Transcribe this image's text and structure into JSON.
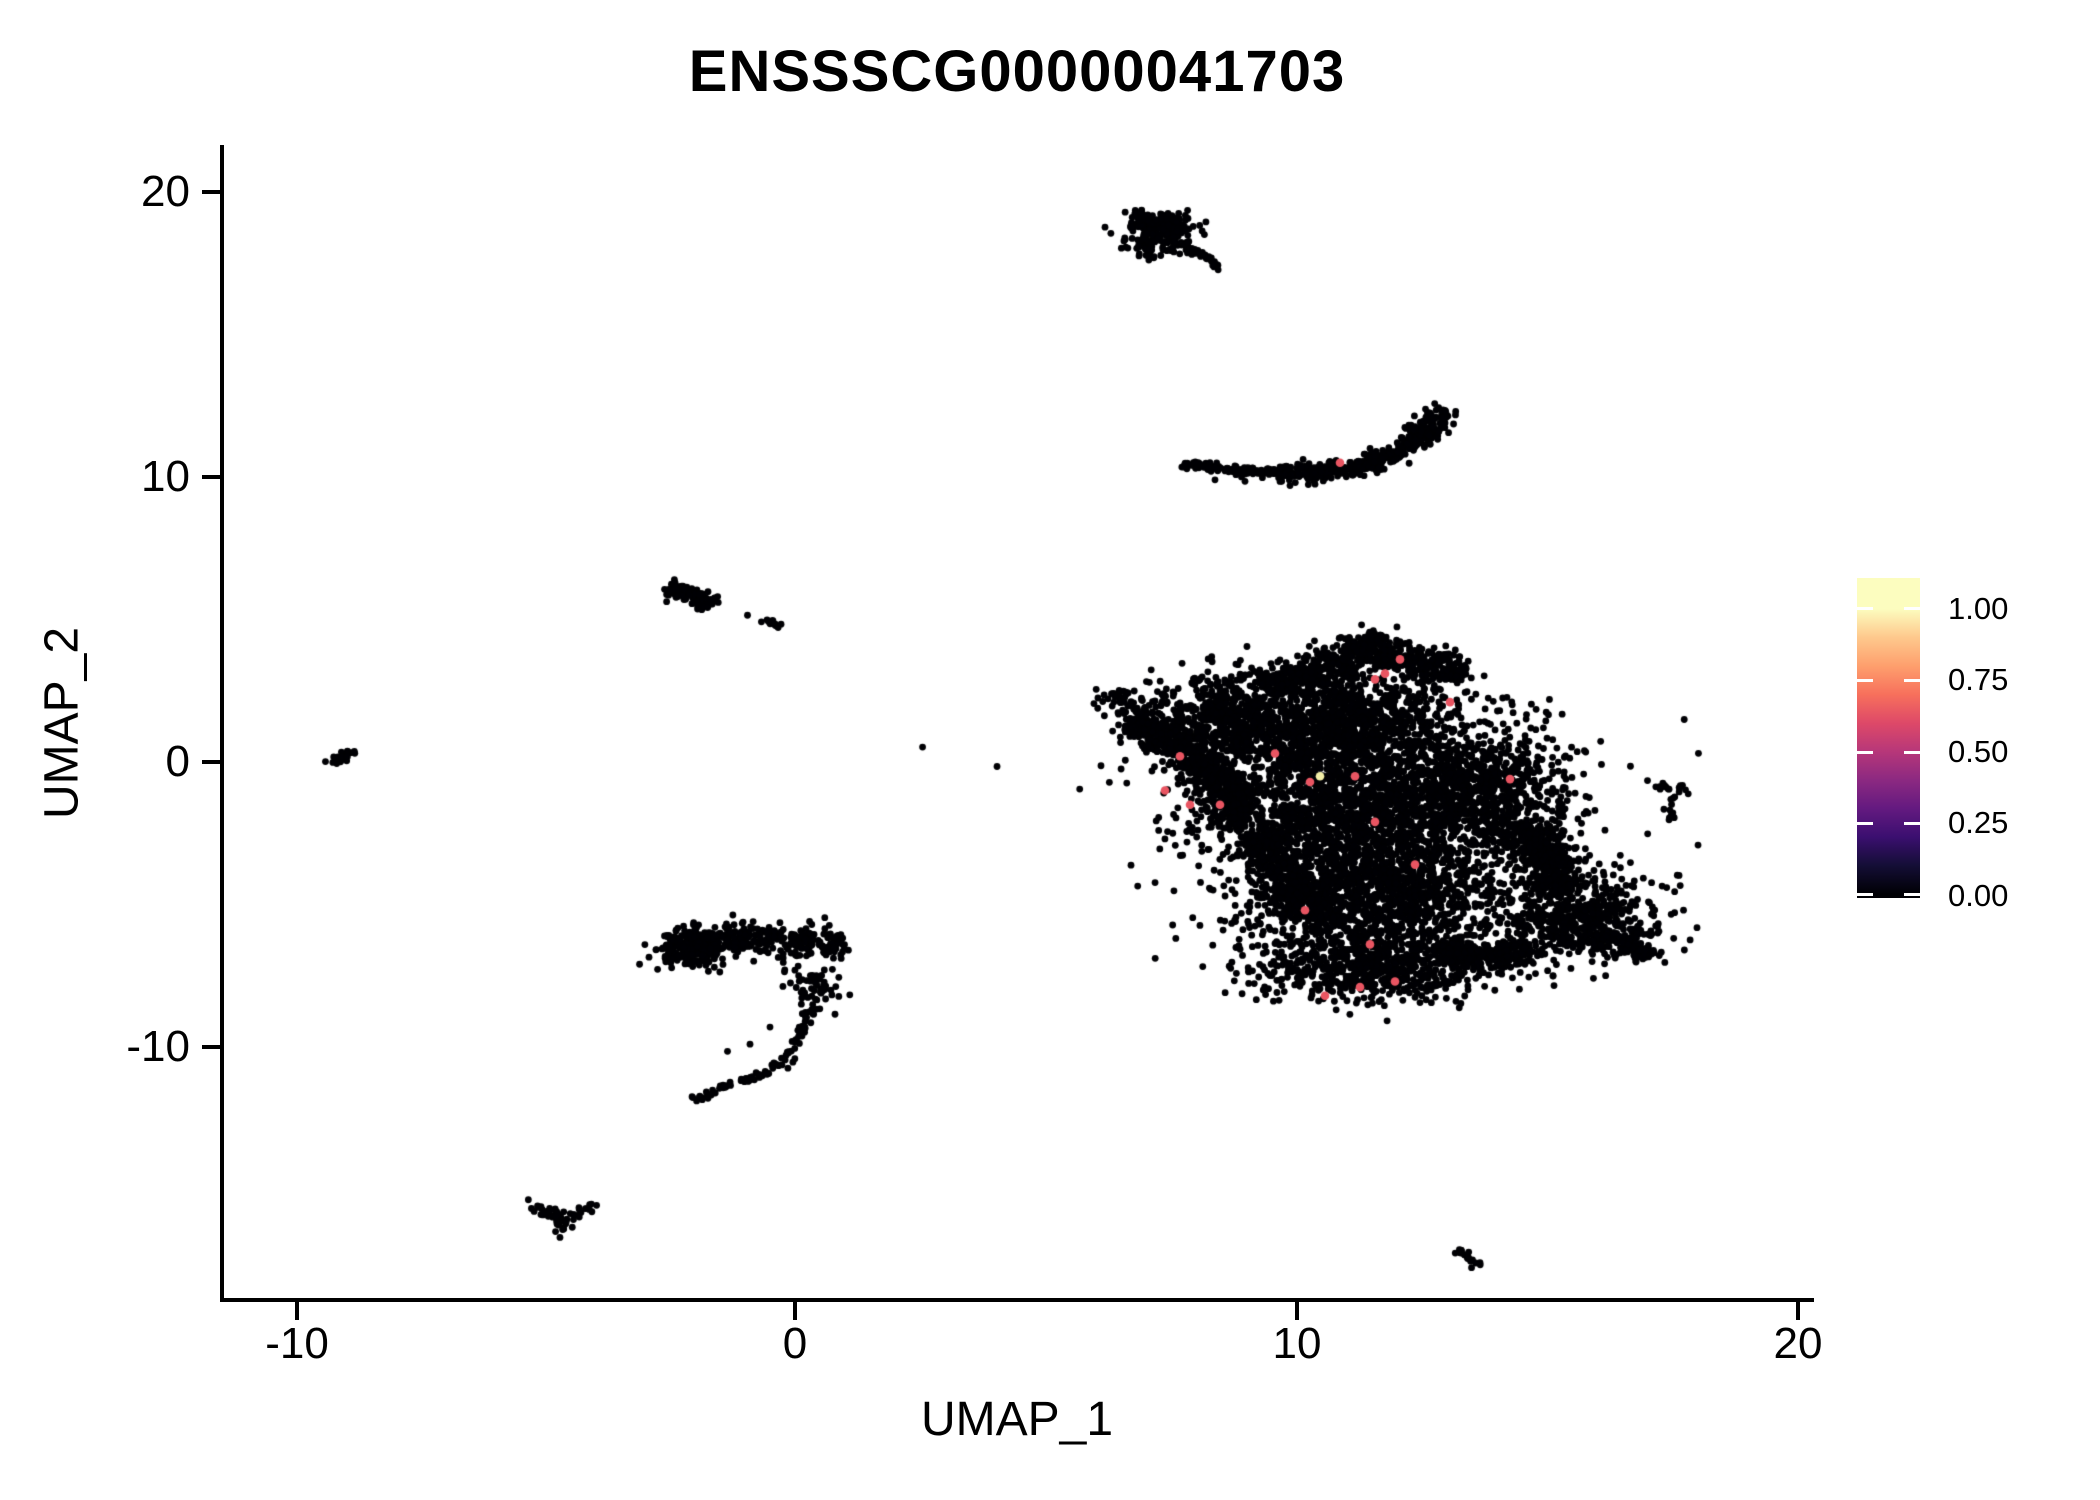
{
  "title": "ENSSSCG00000041703",
  "axes": {
    "x": {
      "label": "UMAP_1",
      "tick_labels": [
        "-10",
        "0",
        "10",
        "20"
      ],
      "tick_values": [
        -10,
        0,
        10,
        20
      ],
      "range": [
        -11.5,
        20.3
      ]
    },
    "y": {
      "label": "UMAP_2",
      "tick_labels": [
        "20",
        "10",
        "0",
        "-10"
      ],
      "tick_values": [
        20,
        10,
        0,
        -10
      ],
      "range": [
        -18.9,
        21.6
      ]
    }
  },
  "legend": {
    "labels": [
      "1.00",
      "0.75",
      "0.50",
      "0.25",
      "0.00"
    ],
    "colormap": "magma",
    "stops": [
      {
        "v": 1.0,
        "c": "#FCFDBF"
      },
      {
        "v": 0.9,
        "c": "#FEC98D"
      },
      {
        "v": 0.8,
        "c": "#FE9F6D"
      },
      {
        "v": 0.7,
        "c": "#F7705C"
      },
      {
        "v": 0.6,
        "c": "#DE4968"
      },
      {
        "v": 0.5,
        "c": "#B73779"
      },
      {
        "v": 0.4,
        "c": "#8C2981"
      },
      {
        "v": 0.3,
        "c": "#641A80"
      },
      {
        "v": 0.2,
        "c": "#3B0F70"
      },
      {
        "v": 0.1,
        "c": "#140E36"
      },
      {
        "v": 0.0,
        "c": "#000004"
      }
    ]
  },
  "chart_data": {
    "type": "scatter",
    "title": "ENSSSCG00000041703",
    "xlabel": "UMAP_1",
    "ylabel": "UMAP_2",
    "xlim": [
      -11.5,
      20.3
    ],
    "ylim": [
      -18.9,
      21.6
    ],
    "grid": false,
    "legend_position": "right",
    "point_color_zero": "#000004",
    "highlight_color": "#E95562",
    "highlight_max_color": "#F2EDA7",
    "description": "UMAP embedding of ~10000 cells colored by expression of ENSSSCG00000041703; nearly all cells are 0 (black), a few scattered cells in the large right-hand cluster and one in the upper crescent show expression ~0.6-1.0",
    "clusters": [
      {
        "name": "main-nose",
        "shape": "gauss",
        "c": [
          6.55,
          2.2
        ],
        "s": [
          0.3,
          0.35
        ],
        "n": 50
      },
      {
        "name": "main-left-arm",
        "shape": "band",
        "path": [
          [
            6.7,
            1.5
          ],
          [
            7.5,
            0.8
          ],
          [
            8.3,
            -0.3
          ],
          [
            8.9,
            -1.4
          ],
          [
            8.6,
            -2.3
          ]
        ],
        "w": 0.55,
        "n": 620
      },
      {
        "name": "main-upper-left-lobe",
        "shape": "gauss",
        "c": [
          8.6,
          1.5
        ],
        "s": [
          0.75,
          0.8
        ],
        "n": 520
      },
      {
        "name": "main-top-ridge",
        "shape": "band",
        "path": [
          [
            9.4,
            2.5
          ],
          [
            10.4,
            3.2
          ],
          [
            11.4,
            4.0
          ],
          [
            12.4,
            3.5
          ],
          [
            13.3,
            3.0
          ]
        ],
        "w": 0.55,
        "n": 620
      },
      {
        "name": "main-top-peak",
        "shape": "gauss",
        "c": [
          11.5,
          4.1
        ],
        "s": [
          0.28,
          0.3
        ],
        "n": 60
      },
      {
        "name": "main-central-upper",
        "shape": "gauss",
        "c": [
          10.9,
          1.2
        ],
        "s": [
          1.3,
          1.0
        ],
        "n": 1250
      },
      {
        "name": "main-central",
        "shape": "gauss",
        "c": [
          11.3,
          -1.5
        ],
        "s": [
          1.5,
          1.2
        ],
        "n": 1550
      },
      {
        "name": "main-central-lower",
        "shape": "gauss",
        "c": [
          11.6,
          -4.5
        ],
        "s": [
          1.4,
          1.2
        ],
        "n": 1550
      },
      {
        "name": "main-right-mid",
        "shape": "gauss",
        "c": [
          13.9,
          -0.9
        ],
        "s": [
          0.8,
          1.0
        ],
        "n": 570
      },
      {
        "name": "main-right-band",
        "shape": "band",
        "path": [
          [
            14.5,
            -2.2
          ],
          [
            15.1,
            -3.4
          ],
          [
            15.1,
            -4.6
          ]
        ],
        "w": 0.6,
        "n": 360
      },
      {
        "name": "main-right-lobe",
        "shape": "gauss",
        "c": [
          15.7,
          -5.5
        ],
        "s": [
          0.8,
          0.75
        ],
        "n": 570
      },
      {
        "name": "main-right-tip",
        "shape": "band",
        "path": [
          [
            16.1,
            -6.0
          ],
          [
            16.7,
            -6.5
          ],
          [
            17.1,
            -6.9
          ]
        ],
        "w": 0.3,
        "n": 110
      },
      {
        "name": "main-bottom",
        "shape": "gauss",
        "c": [
          11.6,
          -7.2
        ],
        "s": [
          1.3,
          0.6
        ],
        "n": 620
      },
      {
        "name": "main-bottom-bridge",
        "shape": "band",
        "path": [
          [
            12.8,
            -6.6
          ],
          [
            13.8,
            -6.8
          ],
          [
            14.7,
            -6.6
          ]
        ],
        "w": 0.5,
        "n": 260
      },
      {
        "name": "main-lower-left-edge",
        "shape": "band",
        "path": [
          [
            9.3,
            -2.5
          ],
          [
            9.8,
            -4.0
          ],
          [
            10.2,
            -5.5
          ]
        ],
        "w": 0.5,
        "n": 320
      },
      {
        "name": "main-outliers",
        "shape": "gauss",
        "c": [
          11.2,
          -1.8
        ],
        "s": [
          3.1,
          2.5
        ],
        "n": 120
      },
      {
        "name": "comet-blob",
        "shape": "gauss",
        "c": [
          7.3,
          18.8
        ],
        "s": [
          0.33,
          0.28
        ],
        "n": 150
      },
      {
        "name": "comet-lower",
        "shape": "gauss",
        "c": [
          7.1,
          18.1
        ],
        "s": [
          0.28,
          0.25
        ],
        "n": 70
      },
      {
        "name": "comet-tail",
        "shape": "band",
        "path": [
          [
            7.6,
            18.4
          ],
          [
            8.1,
            17.8
          ],
          [
            8.55,
            17.3
          ]
        ],
        "w": 0.1,
        "n": 45
      },
      {
        "name": "comet-tip",
        "shape": "band",
        "path": [
          [
            6.8,
            19.3
          ],
          [
            7.3,
            18.9
          ]
        ],
        "w": 0.12,
        "n": 30
      },
      {
        "name": "crescent-left",
        "shape": "band",
        "path": [
          [
            7.75,
            10.45
          ],
          [
            8.7,
            10.25
          ],
          [
            9.7,
            10.15
          ]
        ],
        "w": 0.13,
        "n": 130
      },
      {
        "name": "crescent-mid",
        "shape": "band",
        "path": [
          [
            9.7,
            10.15
          ],
          [
            10.7,
            10.2
          ],
          [
            11.5,
            10.45
          ]
        ],
        "w": 0.3,
        "n": 220
      },
      {
        "name": "crescent-right",
        "shape": "band",
        "path": [
          [
            11.5,
            10.45
          ],
          [
            12.1,
            10.9
          ],
          [
            12.6,
            11.6
          ],
          [
            12.95,
            12.35
          ]
        ],
        "w": 0.33,
        "n": 240
      },
      {
        "name": "crescent-strays",
        "shape": "dots",
        "pts": [
          [
            9.0,
            9.85
          ],
          [
            9.9,
            9.7
          ],
          [
            10.4,
            9.75
          ],
          [
            8.4,
            9.9
          ]
        ]
      },
      {
        "name": "left-small-blob",
        "shape": "band",
        "path": [
          [
            -2.55,
            6.05
          ],
          [
            -2.0,
            5.9
          ],
          [
            -1.65,
            5.5
          ]
        ],
        "w": 0.22,
        "n": 115
      },
      {
        "name": "left-small-dot",
        "shape": "dots",
        "pts": [
          [
            -0.95,
            5.15
          ]
        ]
      },
      {
        "name": "left-small-dash",
        "shape": "band",
        "path": [
          [
            -0.6,
            5.0
          ],
          [
            -0.32,
            4.72
          ]
        ],
        "w": 0.1,
        "n": 12
      },
      {
        "name": "far-left-tiny",
        "shape": "band",
        "path": [
          [
            -9.25,
            -0.05
          ],
          [
            -8.85,
            0.45
          ]
        ],
        "w": 0.16,
        "n": 24
      },
      {
        "name": "right-small-top",
        "shape": "band",
        "path": [
          [
            17.25,
            -0.8
          ],
          [
            17.6,
            -0.95
          ],
          [
            17.85,
            -1.05
          ]
        ],
        "w": 0.12,
        "n": 16
      },
      {
        "name": "right-small-stem",
        "shape": "band",
        "path": [
          [
            17.6,
            -1.15
          ],
          [
            17.5,
            -1.7
          ],
          [
            17.45,
            -2.05
          ]
        ],
        "w": 0.1,
        "n": 12
      },
      {
        "name": "right-small-dot",
        "shape": "dots",
        "pts": [
          [
            17.05,
            -0.65
          ]
        ]
      },
      {
        "name": "hook-top-band",
        "shape": "band",
        "path": [
          [
            -2.65,
            -6.5
          ],
          [
            -1.6,
            -6.2
          ],
          [
            -0.6,
            -6.15
          ],
          [
            0.4,
            -6.45
          ],
          [
            1.0,
            -6.3
          ]
        ],
        "w": 0.5,
        "n": 340
      },
      {
        "name": "hook-left-dense",
        "shape": "gauss",
        "c": [
          -2.1,
          -6.6
        ],
        "s": [
          0.4,
          0.35
        ],
        "n": 130
      },
      {
        "name": "hook-sub-blob",
        "shape": "gauss",
        "c": [
          0.35,
          -7.9
        ],
        "s": [
          0.28,
          0.35
        ],
        "n": 55
      },
      {
        "name": "hook-tail",
        "shape": "band",
        "path": [
          [
            0.4,
            -8.5
          ],
          [
            0.15,
            -9.4
          ],
          [
            -0.15,
            -10.3
          ],
          [
            -0.7,
            -11.0
          ],
          [
            -1.4,
            -11.4
          ],
          [
            -2.05,
            -11.85
          ]
        ],
        "w": 0.13,
        "n": 95
      },
      {
        "name": "hook-strays",
        "shape": "dots",
        "pts": [
          [
            -0.9,
            -9.9
          ],
          [
            -1.35,
            -10.15
          ],
          [
            0.8,
            -8.85
          ],
          [
            -0.5,
            -9.3
          ]
        ]
      },
      {
        "name": "v-cluster",
        "shape": "band",
        "path": [
          [
            -5.35,
            -15.5
          ],
          [
            -4.85,
            -15.9
          ],
          [
            -4.45,
            -16.0
          ],
          [
            -4.05,
            -15.55
          ]
        ],
        "w": 0.16,
        "n": 42
      },
      {
        "name": "v-cluster-drop",
        "shape": "gauss",
        "c": [
          -4.75,
          -16.2
        ],
        "s": [
          0.18,
          0.2
        ],
        "n": 18
      },
      {
        "name": "bottom-right-dash",
        "shape": "band",
        "path": [
          [
            13.15,
            -17.1
          ],
          [
            13.75,
            -17.6
          ]
        ],
        "w": 0.15,
        "n": 20
      }
    ],
    "highlighted_points": [
      [
        12.1,
        3.6
      ],
      [
        11.8,
        3.1
      ],
      [
        11.6,
        2.9
      ],
      [
        13.1,
        2.1
      ],
      [
        7.7,
        0.2
      ],
      [
        9.6,
        0.3
      ],
      [
        10.3,
        -0.7
      ],
      [
        11.2,
        -0.5
      ],
      [
        7.4,
        -1.0
      ],
      [
        7.9,
        -1.5
      ],
      [
        8.5,
        -1.5
      ],
      [
        14.3,
        -0.6
      ],
      [
        11.6,
        -2.1
      ],
      [
        12.4,
        -3.6
      ],
      [
        10.2,
        -5.2
      ],
      [
        11.5,
        -6.4
      ],
      [
        12.0,
        -7.7
      ],
      [
        11.3,
        -7.9
      ],
      [
        10.6,
        -8.2
      ],
      [
        10.9,
        10.5
      ]
    ],
    "highlighted_max_points": [
      [
        10.5,
        -0.5
      ]
    ]
  }
}
